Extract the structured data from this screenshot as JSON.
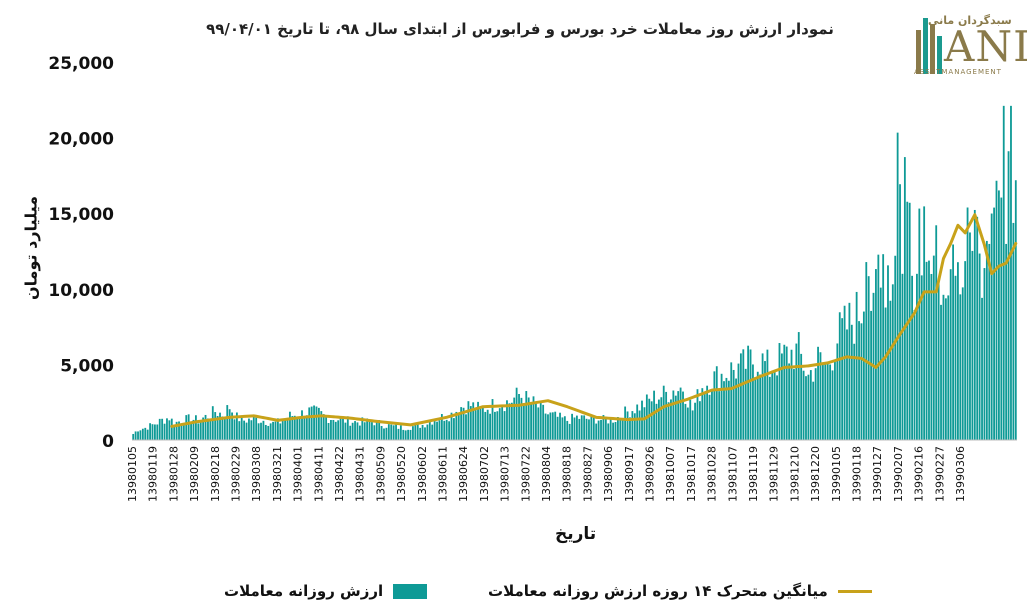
{
  "chart_data": {
    "type": "bar",
    "title": "نمودار ارزش روز معاملات خرد بورس و فرابورس از ابتدای سال ۹۸، تا تاریخ ۹۹/۰۴/۰۱",
    "xlabel": "تاریخ",
    "ylabel": "میلیارد تومان",
    "ylim": [
      0,
      25000
    ],
    "y_ticks": [
      "0",
      "5,000",
      "10,000",
      "15,000",
      "20,000",
      "25,000"
    ],
    "x_tick_labels": [
      "13980105",
      "13980119",
      "13980128",
      "13980209",
      "13980218",
      "13980229",
      "13980308",
      "13980321",
      "13980401",
      "13980411",
      "13980422",
      "13980431",
      "13980509",
      "13980520",
      "13980602",
      "13980611",
      "13980624",
      "13980702",
      "13980713",
      "13980722",
      "13980804",
      "13980818",
      "13980827",
      "13980906",
      "13980917",
      "13980926",
      "13981007",
      "13981017",
      "13981028",
      "13981107",
      "13981119",
      "13981129",
      "13981210",
      "13981220",
      "13990105",
      "13990118",
      "13990127",
      "13990207",
      "13990216",
      "13990227",
      "13990306"
    ],
    "grid": false,
    "legend_position": "bottom",
    "colors": {
      "bars": "#0e9a96",
      "moving_average": "#c8a21a"
    },
    "bar_anchors": [
      [
        0,
        400
      ],
      [
        2,
        700
      ],
      [
        5,
        800
      ],
      [
        8,
        1000
      ],
      [
        12,
        1300
      ],
      [
        15,
        1500
      ],
      [
        17,
        1100
      ],
      [
        20,
        1300
      ],
      [
        24,
        1400
      ],
      [
        27,
        1300
      ],
      [
        31,
        1600
      ],
      [
        34,
        1900
      ],
      [
        37,
        1700
      ],
      [
        40,
        2200
      ],
      [
        43,
        1500
      ],
      [
        46,
        1300
      ],
      [
        50,
        1400
      ],
      [
        54,
        1300
      ],
      [
        58,
        1100
      ],
      [
        61,
        1200
      ],
      [
        65,
        1600
      ],
      [
        69,
        1700
      ],
      [
        73,
        1900
      ],
      [
        77,
        1800
      ],
      [
        80,
        1500
      ],
      [
        84,
        1400
      ],
      [
        88,
        1300
      ],
      [
        92,
        1200
      ],
      [
        96,
        1200
      ],
      [
        100,
        1200
      ],
      [
        104,
        1000
      ],
      [
        108,
        900
      ],
      [
        112,
        800
      ],
      [
        116,
        900
      ],
      [
        120,
        1000
      ],
      [
        124,
        1300
      ],
      [
        128,
        1500
      ],
      [
        132,
        1700
      ],
      [
        136,
        2200
      ],
      [
        140,
        2300
      ],
      [
        144,
        2000
      ],
      [
        148,
        2200
      ],
      [
        152,
        2500
      ],
      [
        156,
        2500
      ],
      [
        160,
        3000
      ],
      [
        164,
        2600
      ],
      [
        168,
        2200
      ],
      [
        172,
        1700
      ],
      [
        176,
        1500
      ],
      [
        180,
        1300
      ],
      [
        184,
        1500
      ],
      [
        188,
        1400
      ],
      [
        192,
        1400
      ],
      [
        196,
        1300
      ],
      [
        200,
        1400
      ],
      [
        204,
        1800
      ],
      [
        208,
        2100
      ],
      [
        212,
        2400
      ],
      [
        216,
        2800
      ],
      [
        220,
        3000
      ],
      [
        224,
        3300
      ],
      [
        228,
        3500
      ],
      [
        232,
        2000
      ],
      [
        236,
        3600
      ],
      [
        240,
        4000
      ],
      [
        244,
        4300
      ],
      [
        248,
        4600
      ],
      [
        252,
        4800
      ],
      [
        256,
        5200
      ],
      [
        260,
        5300
      ],
      [
        264,
        4700
      ],
      [
        268,
        5300
      ],
      [
        272,
        5700
      ],
      [
        276,
        5800
      ],
      [
        280,
        4200
      ],
      [
        284,
        5300
      ],
      [
        288,
        4800
      ],
      [
        292,
        6800
      ],
      [
        296,
        7500
      ],
      [
        300,
        8200
      ],
      [
        304,
        9500
      ],
      [
        308,
        12500
      ],
      [
        312,
        11000
      ],
      [
        316,
        13500
      ],
      [
        320,
        15000
      ],
      [
        324,
        11000
      ],
      [
        328,
        14000
      ],
      [
        332,
        12000
      ],
      [
        336,
        10500
      ],
      [
        340,
        9500
      ],
      [
        344,
        11500
      ],
      [
        348,
        14500
      ],
      [
        352,
        12000
      ],
      [
        356,
        15000
      ]
    ],
    "moving_average_anchors": [
      [
        16,
        900
      ],
      [
        26,
        1200
      ],
      [
        40,
        1500
      ],
      [
        50,
        1600
      ],
      [
        60,
        1300
      ],
      [
        70,
        1500
      ],
      [
        78,
        1600
      ],
      [
        90,
        1450
      ],
      [
        100,
        1250
      ],
      [
        115,
        1000
      ],
      [
        130,
        1500
      ],
      [
        145,
        2200
      ],
      [
        160,
        2300
      ],
      [
        172,
        2600
      ],
      [
        180,
        2200
      ],
      [
        192,
        1500
      ],
      [
        205,
        1350
      ],
      [
        212,
        1400
      ],
      [
        220,
        2200
      ],
      [
        230,
        2700
      ],
      [
        240,
        3300
      ],
      [
        248,
        3400
      ],
      [
        260,
        4200
      ],
      [
        270,
        4800
      ],
      [
        280,
        4900
      ],
      [
        288,
        5100
      ],
      [
        296,
        5500
      ],
      [
        302,
        5400
      ],
      [
        308,
        4800
      ],
      [
        312,
        5500
      ],
      [
        318,
        7000
      ],
      [
        324,
        8400
      ],
      [
        328,
        9800
      ],
      [
        333,
        9800
      ],
      [
        336,
        12000
      ],
      [
        339,
        13000
      ],
      [
        342,
        14200
      ],
      [
        345,
        13700
      ],
      [
        349,
        14900
      ],
      [
        353,
        12900
      ],
      [
        356,
        11000
      ],
      [
        359,
        11500
      ],
      [
        362,
        11700
      ],
      [
        366,
        13000
      ]
    ],
    "total_bars": 367
  },
  "legend": {
    "bars_label": "ارزش روزانه معاملات",
    "line_label": "میانگین متحرک ۱۴ روزه ارزش روزانه معاملات"
  },
  "logo": {
    "persian_text": "سبدگردان مانی",
    "letters": "ANI",
    "sub_text": "ASSETMANAGEMENT"
  }
}
